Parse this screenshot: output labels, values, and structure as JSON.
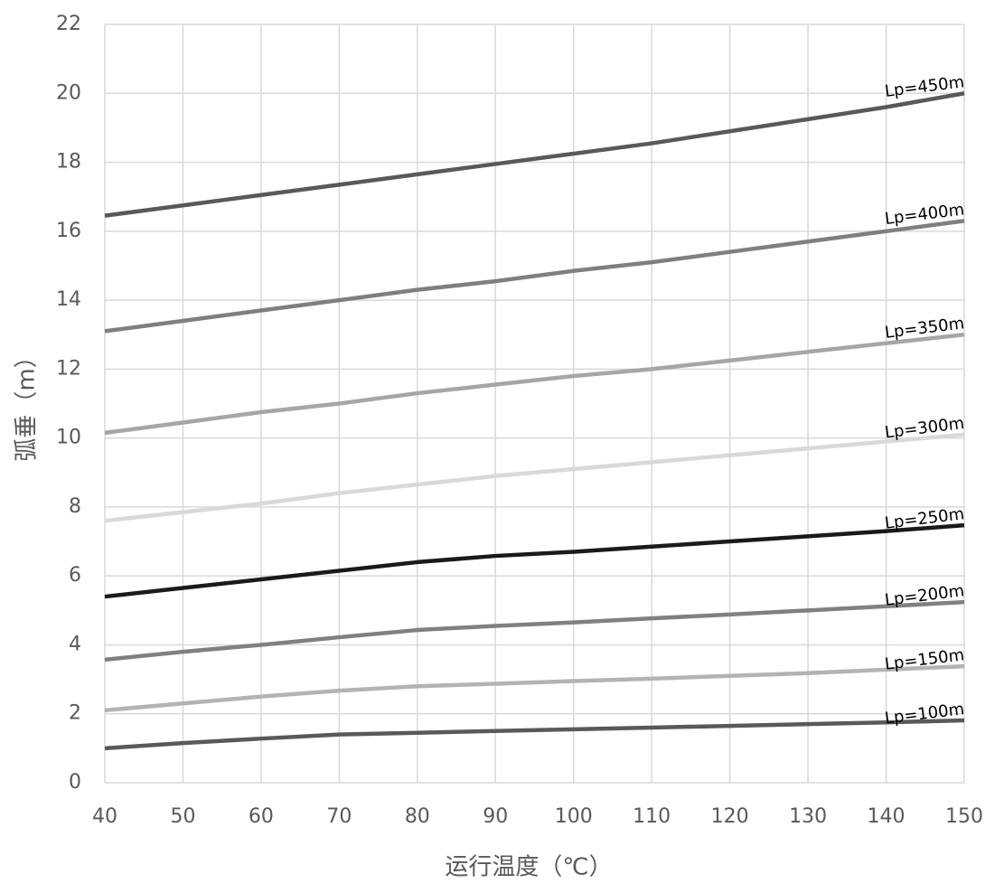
{
  "chart_data": {
    "type": "line",
    "x_label": "运行温度（℃）",
    "y_label": "弧垂（m）",
    "x": [
      40,
      50,
      60,
      70,
      80,
      90,
      100,
      110,
      120,
      130,
      140,
      150
    ],
    "xlim": [
      40,
      150
    ],
    "xticks": [
      40,
      50,
      60,
      70,
      80,
      90,
      100,
      110,
      120,
      130,
      140,
      150
    ],
    "ylim": [
      0,
      22
    ],
    "yticks": [
      0,
      2,
      4,
      6,
      8,
      10,
      12,
      14,
      16,
      18,
      20,
      22
    ],
    "grid": true,
    "series": [
      {
        "name": "Lp=450m",
        "color": "#595959",
        "values": [
          16.45,
          16.75,
          17.05,
          17.35,
          17.65,
          17.95,
          18.25,
          18.55,
          18.9,
          19.25,
          19.6,
          20.0
        ]
      },
      {
        "name": "Lp=400m",
        "color": "#7f7f7f",
        "values": [
          13.1,
          13.4,
          13.7,
          14.0,
          14.3,
          14.55,
          14.85,
          15.1,
          15.4,
          15.7,
          16.0,
          16.3
        ]
      },
      {
        "name": "Lp=350m",
        "color": "#a6a6a6",
        "values": [
          10.15,
          10.45,
          10.75,
          11.0,
          11.3,
          11.55,
          11.8,
          12.0,
          12.25,
          12.5,
          12.75,
          13.0
        ]
      },
      {
        "name": "Lp=300m",
        "color": "#d9d9d9",
        "values": [
          7.6,
          7.85,
          8.1,
          8.4,
          8.65,
          8.9,
          9.1,
          9.3,
          9.5,
          9.7,
          9.9,
          10.1
        ]
      },
      {
        "name": "Lp=250m",
        "color": "#1a1a1a",
        "values": [
          5.4,
          5.65,
          5.9,
          6.15,
          6.4,
          6.58,
          6.7,
          6.85,
          7.0,
          7.15,
          7.3,
          7.47
        ]
      },
      {
        "name": "Lp=200m",
        "color": "#808080",
        "values": [
          3.57,
          3.8,
          4.0,
          4.22,
          4.43,
          4.55,
          4.65,
          4.77,
          4.88,
          5.0,
          5.12,
          5.24
        ]
      },
      {
        "name": "Lp=150m",
        "color": "#b3b3b3",
        "values": [
          2.1,
          2.3,
          2.5,
          2.67,
          2.8,
          2.87,
          2.95,
          3.02,
          3.1,
          3.18,
          3.28,
          3.38
        ]
      },
      {
        "name": "Lp=100m",
        "color": "#595959",
        "values": [
          1.0,
          1.15,
          1.28,
          1.4,
          1.45,
          1.5,
          1.55,
          1.6,
          1.65,
          1.7,
          1.75,
          1.81
        ]
      }
    ]
  }
}
